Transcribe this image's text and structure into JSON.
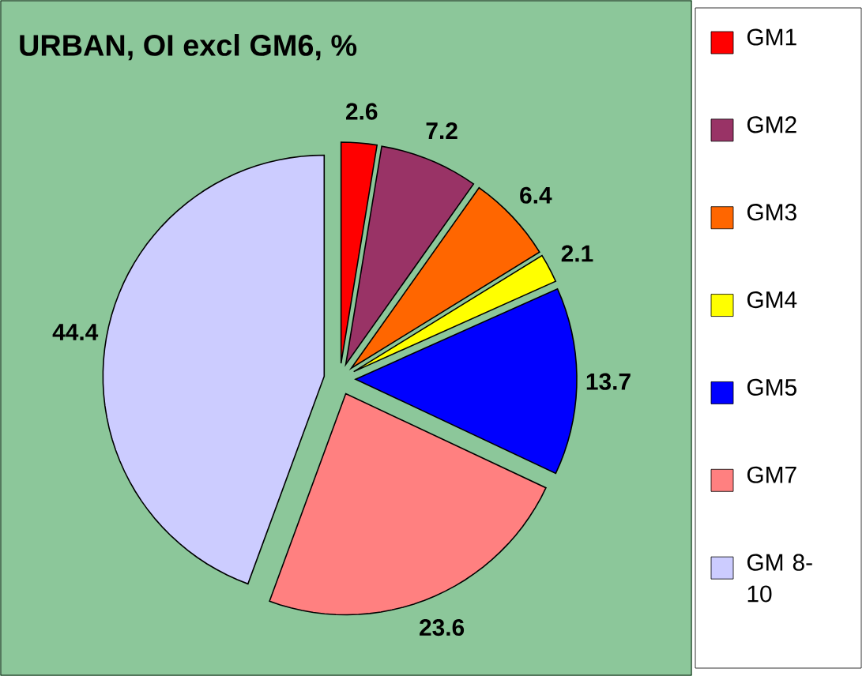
{
  "chart_data": {
    "type": "pie",
    "title": "URBAN, OI excl GM6, %",
    "categories": [
      "GM1",
      "GM2",
      "GM3",
      "GM4",
      "GM5",
      "GM7",
      "GM 8-10"
    ],
    "values": [
      2.6,
      7.2,
      6.4,
      2.1,
      13.7,
      23.6,
      44.4
    ],
    "colors": [
      "#ff0000",
      "#993366",
      "#ff6600",
      "#ffff00",
      "#0000ff",
      "#ff8080",
      "#ccccff"
    ],
    "data_labels": true,
    "legend": "right"
  }
}
